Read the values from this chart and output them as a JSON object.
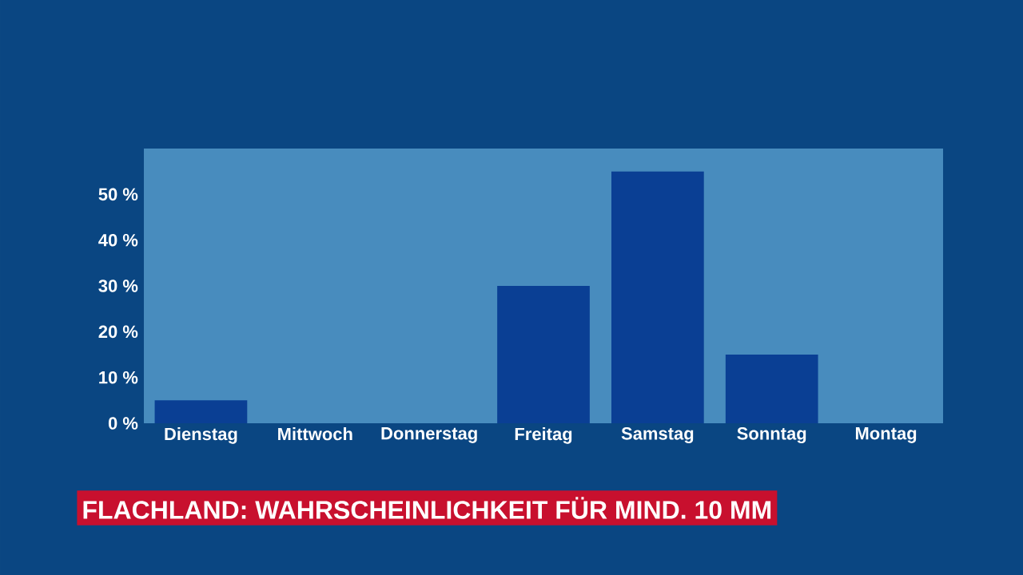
{
  "chart_data": {
    "type": "bar",
    "title": "FLACHLAND: WAHRSCHEINLICHKEIT FÜR MIND. 10 MM",
    "categories": [
      "Dienstag",
      "Mittwoch",
      "Donnerstag",
      "Freitag",
      "Samstag",
      "Sonntag",
      "Montag"
    ],
    "values": [
      5,
      0,
      0,
      30,
      55,
      15,
      0
    ],
    "color": "#0a3f94",
    "ylim": [
      0,
      60
    ],
    "yticks": [
      {
        "value": 0,
        "label": "0 %"
      },
      {
        "value": 10,
        "label": "10 %"
      },
      {
        "value": 20,
        "label": "20 %"
      },
      {
        "value": 30,
        "label": "30 %"
      },
      {
        "value": 40,
        "label": "40 %"
      },
      {
        "value": 50,
        "label": "50 %"
      }
    ]
  }
}
